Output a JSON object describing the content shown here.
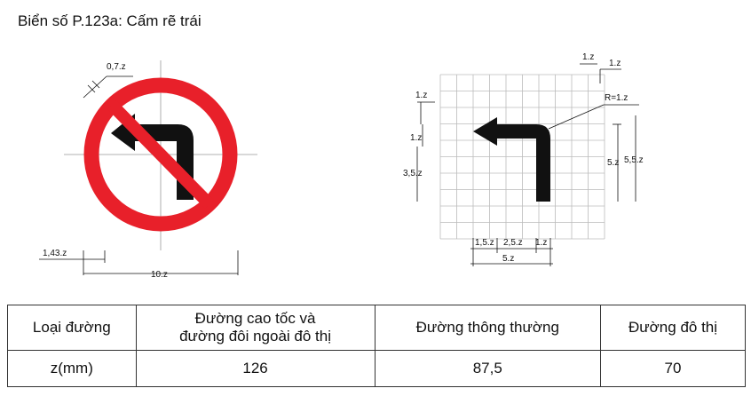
{
  "title": "Biển số P.123a: Cấm rẽ trái",
  "sign": {
    "dim_border": "0,7.z",
    "dim_offset": "1,43.z",
    "dim_diameter": "10.z",
    "colors": {
      "ring": "#e8202a",
      "arrow": "#111111"
    },
    "icon": "left-turn-arrow-icon"
  },
  "arrow_detail": {
    "dim_grid_top": "1.z",
    "dim_grid_right": "1.z",
    "dim_radius": "R=1.z",
    "dim_left_top": "1.z",
    "dim_left_head": "1.z",
    "dim_left_height": "3,5.z",
    "dim_right_inner": "5.z",
    "dim_right_outer": "5,5.z",
    "dim_bottom_a": "1,5.z",
    "dim_bottom_b": "2,5.z",
    "dim_bottom_c": "1.z",
    "dim_bottom_total": "5.z"
  },
  "table": {
    "header": [
      "Loại đường",
      "Đường cao tốc và\nđường đôi ngoài đô thị",
      "Đường thông thường",
      "Đường đô thị"
    ],
    "row": [
      "z(mm)",
      "126",
      "87,5",
      "70"
    ]
  }
}
